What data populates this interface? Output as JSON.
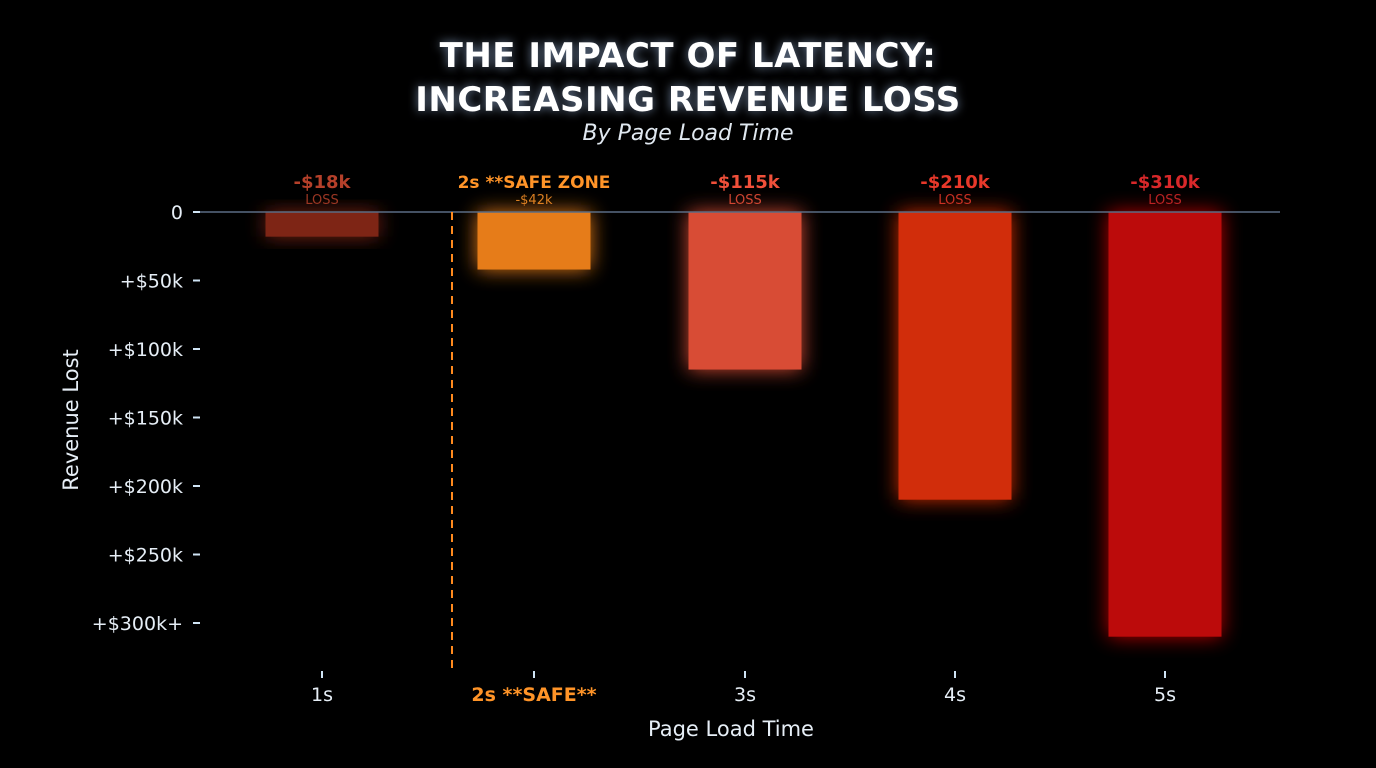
{
  "chart_data": {
    "type": "bar",
    "title_line1": "THE IMPACT OF LATENCY:",
    "title_line2": "INCREASING REVENUE LOSS",
    "subtitle": "By Page Load Time",
    "xlabel": "Page Load Time",
    "ylabel": "Revenue Lost",
    "categories": [
      "1s",
      "2s **SAFE**",
      "3s",
      "4s",
      "5s"
    ],
    "values": [
      18,
      42,
      115,
      210,
      310
    ],
    "unit": "thousand USD",
    "ylim": [
      0,
      330
    ],
    "yticks": [
      0,
      50,
      100,
      150,
      200,
      250,
      300
    ],
    "ytick_labels": [
      "0",
      "+$50k",
      "+$100k",
      "+$150k",
      "+$200k",
      "+$250k",
      "+$300k+"
    ],
    "bar_labels": [
      {
        "value": "-$18k",
        "note": "LOSS"
      },
      {
        "value": "2s **SAFE ZONE",
        "note": "-$42k"
      },
      {
        "value": "-$115k",
        "note": "LOSS"
      },
      {
        "value": "-$210k",
        "note": "LOSS"
      },
      {
        "value": "-$310k",
        "note": "LOSS"
      }
    ],
    "colors": [
      "#a8321c",
      "#ff8a1e",
      "#f0553a",
      "#e8300f",
      "#d10a0a"
    ],
    "label_colors": [
      "#b5402a",
      "#ff9428",
      "#f0503a",
      "#e8382a",
      "#d8282a"
    ],
    "safe_line_color": "#ff8a1e"
  }
}
